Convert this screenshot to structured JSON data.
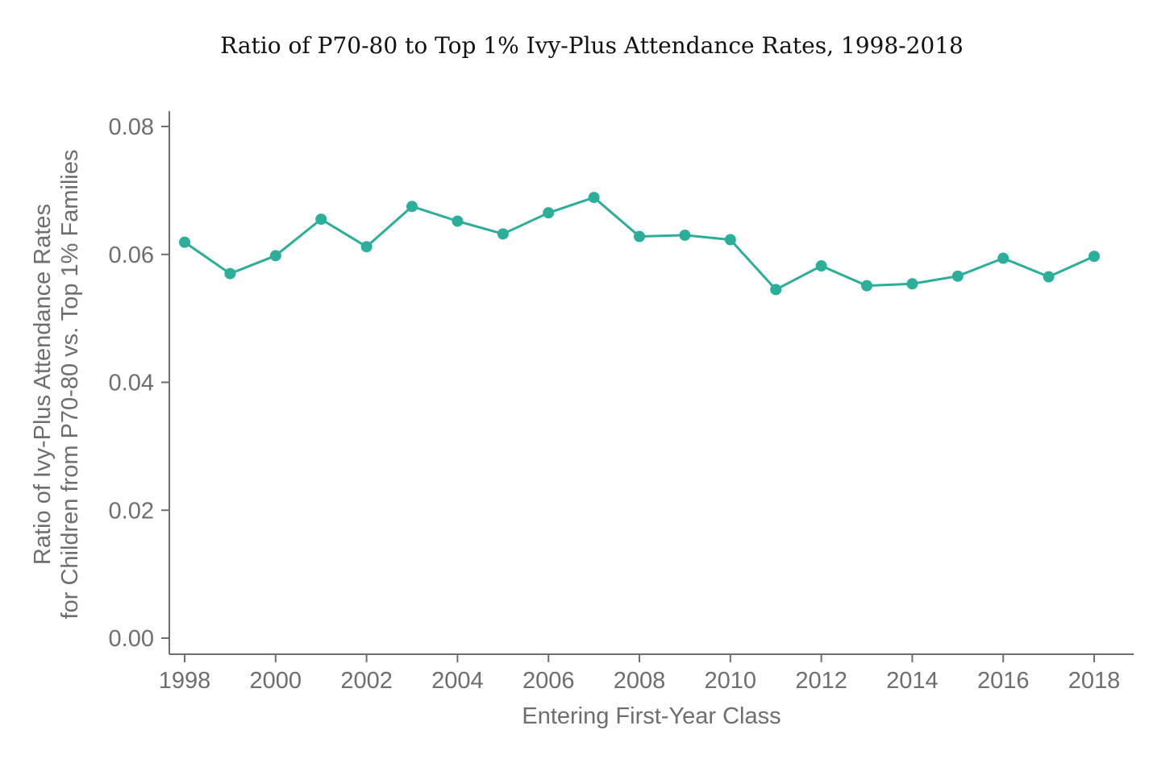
{
  "chart_data": {
    "type": "line",
    "title": "Ratio of P70-80 to Top 1% Ivy-Plus Attendance Rates, 1998-2018",
    "xlabel": "Entering First-Year Class",
    "ylabel_lines": [
      "Ratio of Ivy-Plus Attendance Rates",
      "for Children from P70-80 vs. Top 1% Families"
    ],
    "xlim": [
      1998,
      2018
    ],
    "ylim": [
      0.0,
      0.08
    ],
    "x_ticks": [
      1998,
      2000,
      2002,
      2004,
      2006,
      2008,
      2010,
      2012,
      2014,
      2016,
      2018
    ],
    "x_tick_labels": [
      "1998",
      "2000",
      "2002",
      "2004",
      "2006",
      "2008",
      "2010",
      "2012",
      "2014",
      "2016",
      "2018"
    ],
    "y_ticks": [
      0.0,
      0.02,
      0.04,
      0.06,
      0.08
    ],
    "y_tick_labels": [
      "0.00",
      "0.02",
      "0.04",
      "0.06",
      "0.08"
    ],
    "grid": false,
    "legend": "none",
    "color": "#2bae9a",
    "x": [
      1998,
      1999,
      2000,
      2001,
      2002,
      2003,
      2004,
      2005,
      2006,
      2007,
      2008,
      2009,
      2010,
      2011,
      2012,
      2013,
      2014,
      2015,
      2016,
      2017,
      2018
    ],
    "y": [
      0.0619,
      0.057,
      0.0598,
      0.0655,
      0.0612,
      0.0675,
      0.0652,
      0.0632,
      0.0665,
      0.0689,
      0.0628,
      0.063,
      0.0623,
      0.0545,
      0.0582,
      0.0551,
      0.0554,
      0.0566,
      0.0594,
      0.0565,
      0.0597
    ]
  }
}
